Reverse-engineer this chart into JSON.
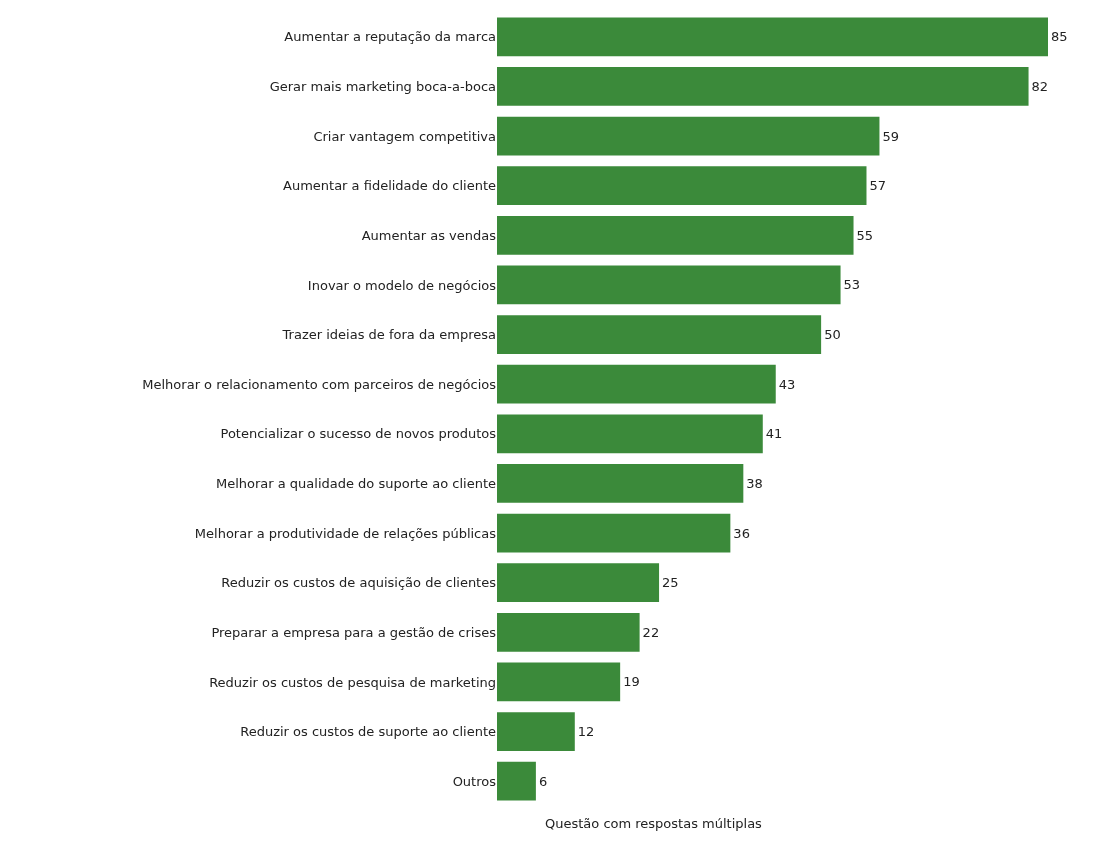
{
  "chart_data": {
    "type": "bar",
    "orientation": "horizontal",
    "categories": [
      "Aumentar a reputação da marca",
      "Gerar mais marketing boca-a-boca",
      "Criar vantagem competitiva",
      "Aumentar a fidelidade do cliente",
      "Aumentar as vendas",
      "Inovar o modelo de negócios",
      "Trazer ideias de fora da empresa",
      "Melhorar o relacionamento com parceiros de negócios",
      "Potencializar o sucesso de novos produtos",
      "Melhorar a qualidade do suporte ao cliente",
      "Melhorar a produtividade de relações públicas",
      "Reduzir os custos de aquisição de clientes",
      "Preparar a empresa para a gestão de crises",
      "Reduzir os custos de pesquisa de marketing",
      "Reduzir os custos de suporte ao cliente",
      "Outros"
    ],
    "values": [
      85,
      82,
      59,
      57,
      55,
      53,
      50,
      43,
      41,
      38,
      36,
      25,
      22,
      19,
      12,
      6
    ],
    "color": "#3b8a3a",
    "data_labels": true,
    "tick_labels": "y",
    "annotations": [
      "Questão com respostas múltiplas"
    ]
  }
}
